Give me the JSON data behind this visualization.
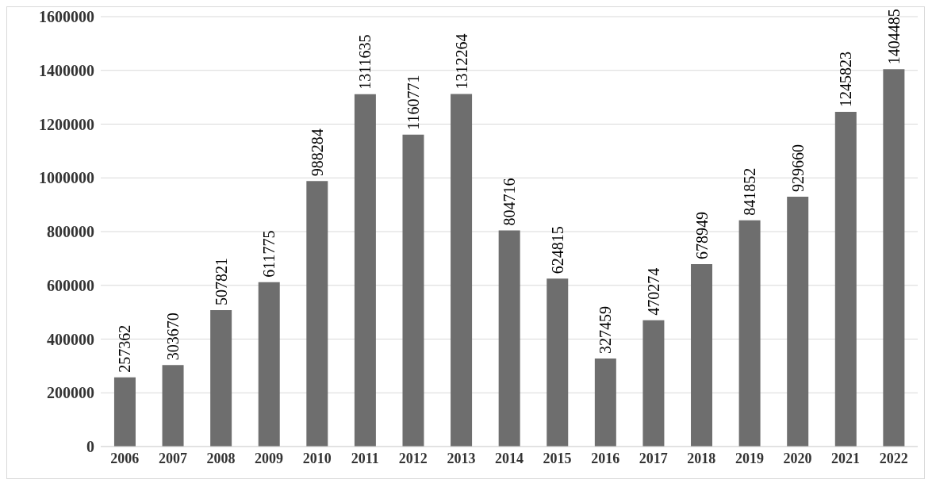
{
  "chart_data": {
    "type": "bar",
    "categories": [
      "2006",
      "2007",
      "2008",
      "2009",
      "2010",
      "2011",
      "2012",
      "2013",
      "2014",
      "2015",
      "2016",
      "2017",
      "2018",
      "2019",
      "2020",
      "2021",
      "2022"
    ],
    "values": [
      257362,
      303670,
      507821,
      611775,
      988284,
      1311635,
      1160771,
      1312264,
      804716,
      624815,
      327459,
      470274,
      678949,
      841852,
      929660,
      1245823,
      1404485
    ],
    "color": "#6e6e6e",
    "ylim": [
      0,
      1600000
    ],
    "yticks": [
      0,
      200000,
      400000,
      600000,
      800000,
      1000000,
      1200000,
      1400000,
      1600000
    ],
    "grid": "y",
    "data_labels": true
  }
}
